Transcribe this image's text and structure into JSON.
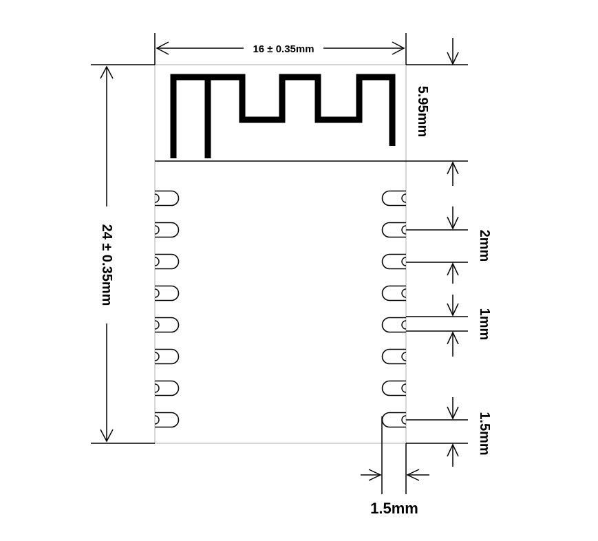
{
  "diagram": {
    "labels": {
      "width": "16 ± 0.35mm",
      "height": "24 ± 0.35mm",
      "antenna_height": "5.95mm",
      "pad_pitch": "2mm",
      "pad_width": "1mm",
      "bottom_clearance": "1.5mm",
      "pad_length": "1.5mm"
    },
    "pads_per_side": 8,
    "colors": {
      "stroke": "#000000",
      "board_edge": "#c8c8c8",
      "background": "#ffffff"
    }
  }
}
